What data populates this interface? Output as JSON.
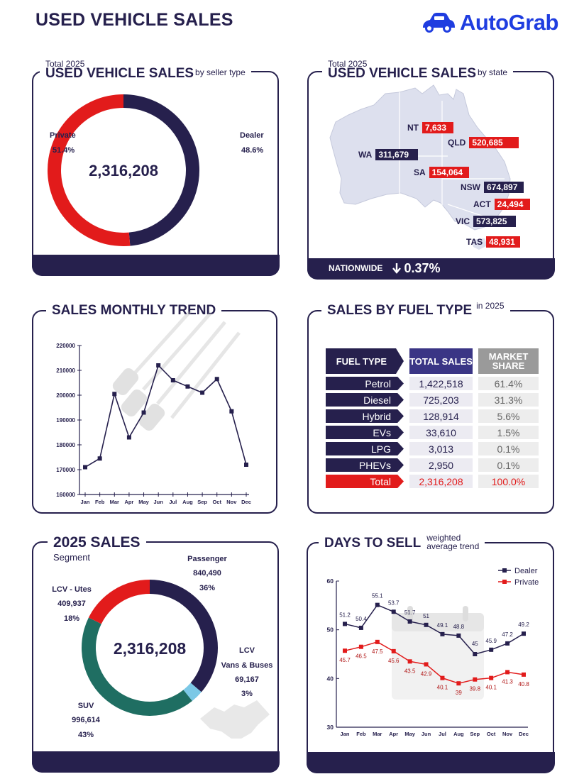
{
  "header": {
    "title": "USED VEHICLE SALES",
    "brand": "AutoGrab",
    "brand_color": "#1f3de0"
  },
  "colors": {
    "navy": "#26204d",
    "red": "#e21b1b",
    "teal": "#1f6e62",
    "light_blue": "#7bc8e6"
  },
  "seller_panel": {
    "kicker": "Total 2025",
    "title": "USED VEHICLE SALES",
    "subtitle": "by seller type",
    "total": "2,316,208",
    "private_label": "Private",
    "private_pct": "51.4%",
    "dealer_label": "Dealer",
    "dealer_pct": "48.6%"
  },
  "state_panel": {
    "kicker": "Total 2025",
    "title": "USED VEHICLE SALES",
    "subtitle": "by state",
    "states": [
      {
        "code": "NT",
        "value": "7,633"
      },
      {
        "code": "QLD",
        "value": "520,685"
      },
      {
        "code": "WA",
        "value": "311,679"
      },
      {
        "code": "SA",
        "value": "154,064"
      },
      {
        "code": "NSW",
        "value": "674,897"
      },
      {
        "code": "ACT",
        "value": "24,494"
      },
      {
        "code": "VIC",
        "value": "573,825"
      },
      {
        "code": "TAS",
        "value": "48,931"
      }
    ],
    "nationwide_label": "NATIONWIDE",
    "nationwide_change": "0.37%",
    "arrow": "down-arrow-icon"
  },
  "monthly_panel": {
    "title": "SALES MONTHLY TREND"
  },
  "fuel_panel": {
    "title": "SALES BY FUEL TYPE",
    "subtitle": "in 2025",
    "headers": [
      "FUEL TYPE",
      "TOTAL SALES",
      "MARKET SHARE"
    ],
    "rows": [
      {
        "type": "Petrol",
        "sales": "1,422,518",
        "share": "61.4%"
      },
      {
        "type": "Diesel",
        "sales": "725,203",
        "share": "31.3%"
      },
      {
        "type": "Hybrid",
        "sales": "128,914",
        "share": "5.6%"
      },
      {
        "type": "EVs",
        "sales": "33,610",
        "share": "1.5%"
      },
      {
        "type": "LPG",
        "sales": "3,013",
        "share": "0.1%"
      },
      {
        "type": "PHEVs",
        "sales": "2,950",
        "share": "0.1%"
      },
      {
        "type": "Total",
        "sales": "2,316,208",
        "share": "100.0%"
      }
    ]
  },
  "segment_panel": {
    "title": "2025 SALES",
    "subtitle": "Segment",
    "total": "2,316,208",
    "labels": [
      {
        "name": "Passenger",
        "value": "840,490",
        "pct": "36%"
      },
      {
        "name": "LCV - Utes",
        "value": "409,937",
        "pct": "18%"
      },
      {
        "name": "LCV",
        "name2": "Vans & Buses",
        "value": "69,167",
        "pct": "3%"
      },
      {
        "name": "SUV",
        "value": "996,614",
        "pct": "43%"
      }
    ]
  },
  "days_panel": {
    "title": "DAYS TO SELL",
    "subtitle_1": "weighted",
    "subtitle_2": "average trend"
  },
  "chart_data": [
    {
      "type": "pie",
      "title": "USED VEHICLE SALES by seller type",
      "categories": [
        "Dealer",
        "Private"
      ],
      "values": [
        48.6,
        51.4
      ]
    },
    {
      "type": "line",
      "title": "SALES MONTHLY TREND",
      "categories": [
        "Jan",
        "Feb",
        "Mar",
        "Apr",
        "May",
        "Jun",
        "Jul",
        "Aug",
        "Sep",
        "Oct",
        "Nov",
        "Dec"
      ],
      "values": [
        171000,
        174500,
        200500,
        183000,
        193000,
        212000,
        206000,
        203500,
        201000,
        206500,
        193500,
        172000
      ],
      "ylim": [
        160000,
        220000
      ],
      "yticks": [
        160000,
        170000,
        180000,
        190000,
        200000,
        210000,
        220000
      ]
    },
    {
      "type": "table",
      "title": "SALES BY FUEL TYPE in 2025",
      "columns": [
        "FUEL TYPE",
        "TOTAL SALES",
        "MARKET SHARE"
      ],
      "rows": [
        [
          "Petrol",
          1422518,
          61.4
        ],
        [
          "Diesel",
          725203,
          31.3
        ],
        [
          "Hybrid",
          128914,
          5.6
        ],
        [
          "EVs",
          33610,
          1.5
        ],
        [
          "LPG",
          3013,
          0.1
        ],
        [
          "PHEVs",
          2950,
          0.1
        ],
        [
          "Total",
          2316208,
          100.0
        ]
      ]
    },
    {
      "type": "pie",
      "title": "2025 SALES Segment",
      "categories": [
        "Passenger",
        "LCV Vans & Buses",
        "SUV",
        "LCV - Utes"
      ],
      "values": [
        840490,
        69167,
        996614,
        409937
      ]
    },
    {
      "type": "line",
      "title": "DAYS TO SELL weighted average trend",
      "categories": [
        "Jan",
        "Feb",
        "Mar",
        "Apr",
        "May",
        "Jun",
        "Jul",
        "Aug",
        "Sep",
        "Oct",
        "Nov",
        "Dec"
      ],
      "series": [
        {
          "name": "Dealer",
          "values": [
            51.2,
            50.4,
            55.1,
            53.7,
            51.7,
            51,
            49.1,
            48.8,
            45,
            45.9,
            47.2,
            49.2
          ]
        },
        {
          "name": "Private",
          "values": [
            45.7,
            46.5,
            47.5,
            45.6,
            43.5,
            42.9,
            40.1,
            39,
            39.8,
            40.1,
            41.3,
            40.8
          ]
        }
      ],
      "ylim": [
        30,
        60
      ],
      "yticks": [
        30,
        40,
        50,
        60
      ],
      "legend": "top-right"
    }
  ]
}
